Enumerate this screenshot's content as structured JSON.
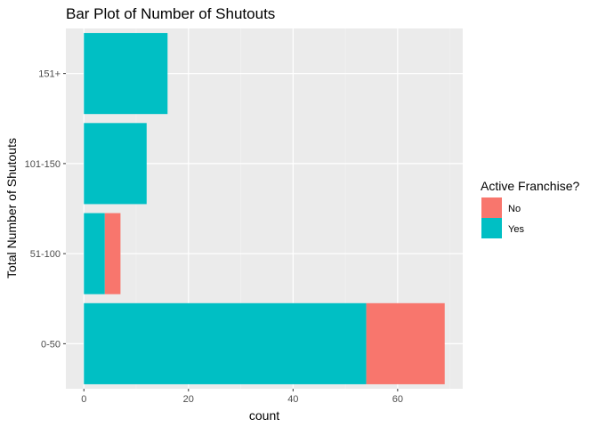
{
  "chart_data": {
    "type": "bar",
    "orientation": "horizontal",
    "stacked": true,
    "title": "Bar Plot of Number of Shutouts",
    "xlabel": "count",
    "ylabel": "Total Number of Shutouts",
    "categories": [
      "0-50",
      "51-100",
      "101-150",
      "151+"
    ],
    "series": [
      {
        "name": "Yes",
        "values": [
          54,
          4,
          12,
          16
        ]
      },
      {
        "name": "No",
        "values": [
          15,
          3,
          0,
          0
        ]
      }
    ],
    "xlim": [
      -3.45,
      72.45
    ],
    "xticks": [
      0,
      20,
      40,
      60
    ],
    "grid": true,
    "legend": {
      "title": "Active Franchise?",
      "position": "right",
      "entries": [
        "No",
        "Yes"
      ]
    },
    "colors": {
      "No": "#F8766D",
      "Yes": "#00BFC4",
      "panel": "#EBEBEB"
    }
  }
}
